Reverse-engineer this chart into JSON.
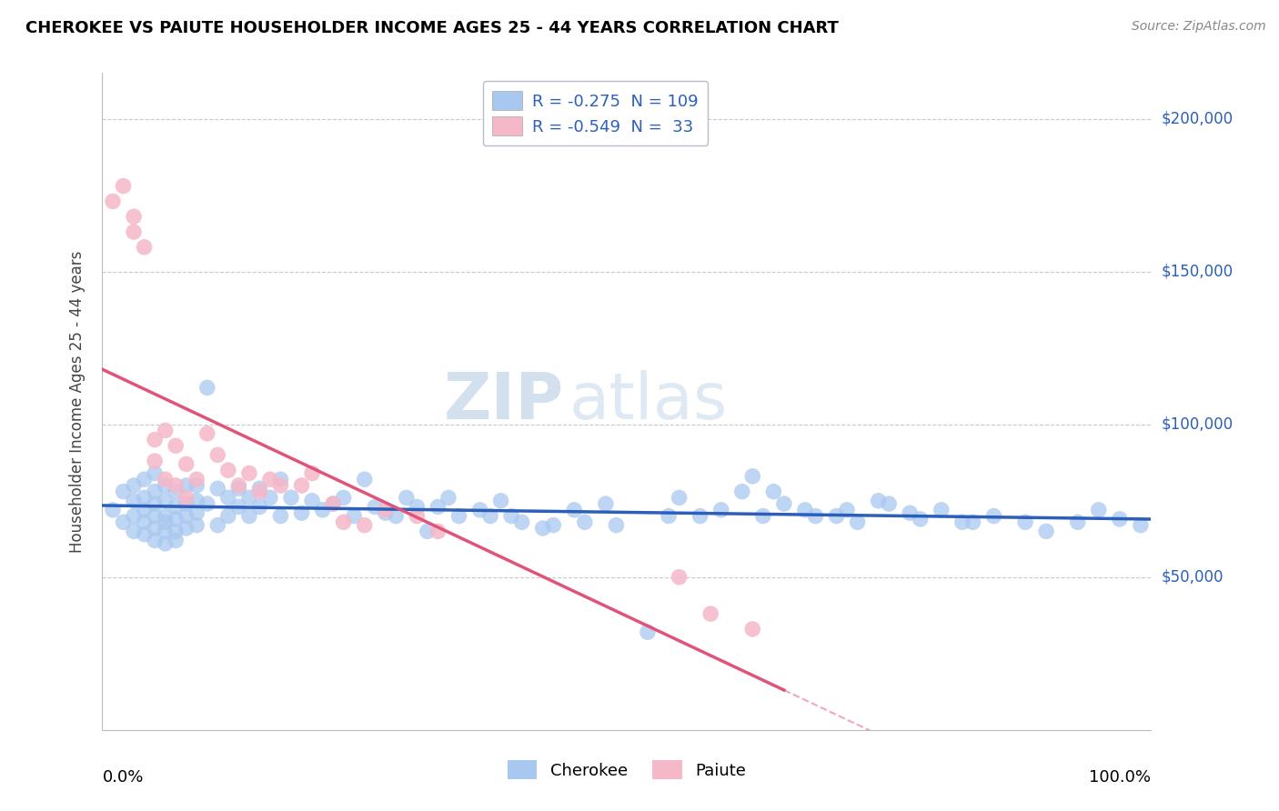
{
  "title": "CHEROKEE VS PAIUTE HOUSEHOLDER INCOME AGES 25 - 44 YEARS CORRELATION CHART",
  "source": "Source: ZipAtlas.com",
  "ylabel": "Householder Income Ages 25 - 44 years",
  "xlim": [
    0.0,
    1.0
  ],
  "ylim": [
    0,
    215000
  ],
  "yticks": [
    0,
    50000,
    100000,
    150000,
    200000
  ],
  "ytick_labels": [
    "",
    "$50,000",
    "$100,000",
    "$150,000",
    "$200,000"
  ],
  "cherokee_color": "#a8c8f0",
  "paiute_color": "#f5b8c8",
  "cherokee_line_color": "#2b5fba",
  "paiute_line_color": "#e0547a",
  "R_cherokee": -0.275,
  "N_cherokee": 109,
  "R_paiute": -0.549,
  "N_paiute": 33,
  "watermark_zip": "ZIP",
  "watermark_atlas": "atlas",
  "background_color": "#ffffff",
  "grid_color": "#c8c8d8",
  "cherokee_x": [
    0.01,
    0.02,
    0.02,
    0.03,
    0.03,
    0.03,
    0.03,
    0.04,
    0.04,
    0.04,
    0.04,
    0.04,
    0.05,
    0.05,
    0.05,
    0.05,
    0.05,
    0.05,
    0.06,
    0.06,
    0.06,
    0.06,
    0.06,
    0.06,
    0.07,
    0.07,
    0.07,
    0.07,
    0.07,
    0.08,
    0.08,
    0.08,
    0.08,
    0.09,
    0.09,
    0.09,
    0.09,
    0.1,
    0.1,
    0.11,
    0.11,
    0.12,
    0.12,
    0.13,
    0.13,
    0.14,
    0.14,
    0.15,
    0.15,
    0.16,
    0.17,
    0.17,
    0.18,
    0.19,
    0.2,
    0.21,
    0.22,
    0.23,
    0.24,
    0.25,
    0.26,
    0.27,
    0.28,
    0.29,
    0.3,
    0.31,
    0.32,
    0.33,
    0.34,
    0.36,
    0.37,
    0.38,
    0.39,
    0.4,
    0.42,
    0.43,
    0.45,
    0.46,
    0.48,
    0.49,
    0.52,
    0.54,
    0.55,
    0.57,
    0.59,
    0.61,
    0.63,
    0.65,
    0.67,
    0.7,
    0.72,
    0.75,
    0.78,
    0.8,
    0.83,
    0.85,
    0.88,
    0.9,
    0.93,
    0.95,
    0.97,
    0.99,
    0.62,
    0.64,
    0.68,
    0.71,
    0.74,
    0.77,
    0.82
  ],
  "cherokee_y": [
    72000,
    78000,
    68000,
    80000,
    75000,
    70000,
    65000,
    82000,
    76000,
    72000,
    68000,
    64000,
    84000,
    78000,
    74000,
    70000,
    66000,
    62000,
    80000,
    75000,
    70000,
    68000,
    65000,
    61000,
    78000,
    73000,
    69000,
    65000,
    62000,
    80000,
    74000,
    70000,
    66000,
    80000,
    75000,
    71000,
    67000,
    112000,
    74000,
    79000,
    67000,
    76000,
    70000,
    79000,
    73000,
    76000,
    70000,
    79000,
    73000,
    76000,
    82000,
    70000,
    76000,
    71000,
    75000,
    72000,
    74000,
    76000,
    70000,
    82000,
    73000,
    71000,
    70000,
    76000,
    73000,
    65000,
    73000,
    76000,
    70000,
    72000,
    70000,
    75000,
    70000,
    68000,
    66000,
    67000,
    72000,
    68000,
    74000,
    67000,
    32000,
    70000,
    76000,
    70000,
    72000,
    78000,
    70000,
    74000,
    72000,
    70000,
    68000,
    74000,
    69000,
    72000,
    68000,
    70000,
    68000,
    65000,
    68000,
    72000,
    69000,
    67000,
    83000,
    78000,
    70000,
    72000,
    75000,
    71000,
    68000
  ],
  "paiute_x": [
    0.01,
    0.02,
    0.03,
    0.03,
    0.04,
    0.05,
    0.05,
    0.06,
    0.06,
    0.07,
    0.07,
    0.08,
    0.08,
    0.09,
    0.1,
    0.11,
    0.12,
    0.13,
    0.14,
    0.15,
    0.16,
    0.17,
    0.19,
    0.2,
    0.22,
    0.23,
    0.25,
    0.27,
    0.3,
    0.32,
    0.55,
    0.58,
    0.62
  ],
  "paiute_y": [
    173000,
    178000,
    168000,
    163000,
    158000,
    95000,
    88000,
    98000,
    82000,
    93000,
    80000,
    87000,
    76000,
    82000,
    97000,
    90000,
    85000,
    80000,
    84000,
    78000,
    82000,
    80000,
    80000,
    84000,
    74000,
    68000,
    67000,
    72000,
    70000,
    65000,
    50000,
    38000,
    33000
  ],
  "legend_label_cherokee": "R = -0.275  N = 109",
  "legend_label_paiute": "R = -0.549  N =  33",
  "bottom_legend_cherokee": "Cherokee",
  "bottom_legend_paiute": "Paiute"
}
